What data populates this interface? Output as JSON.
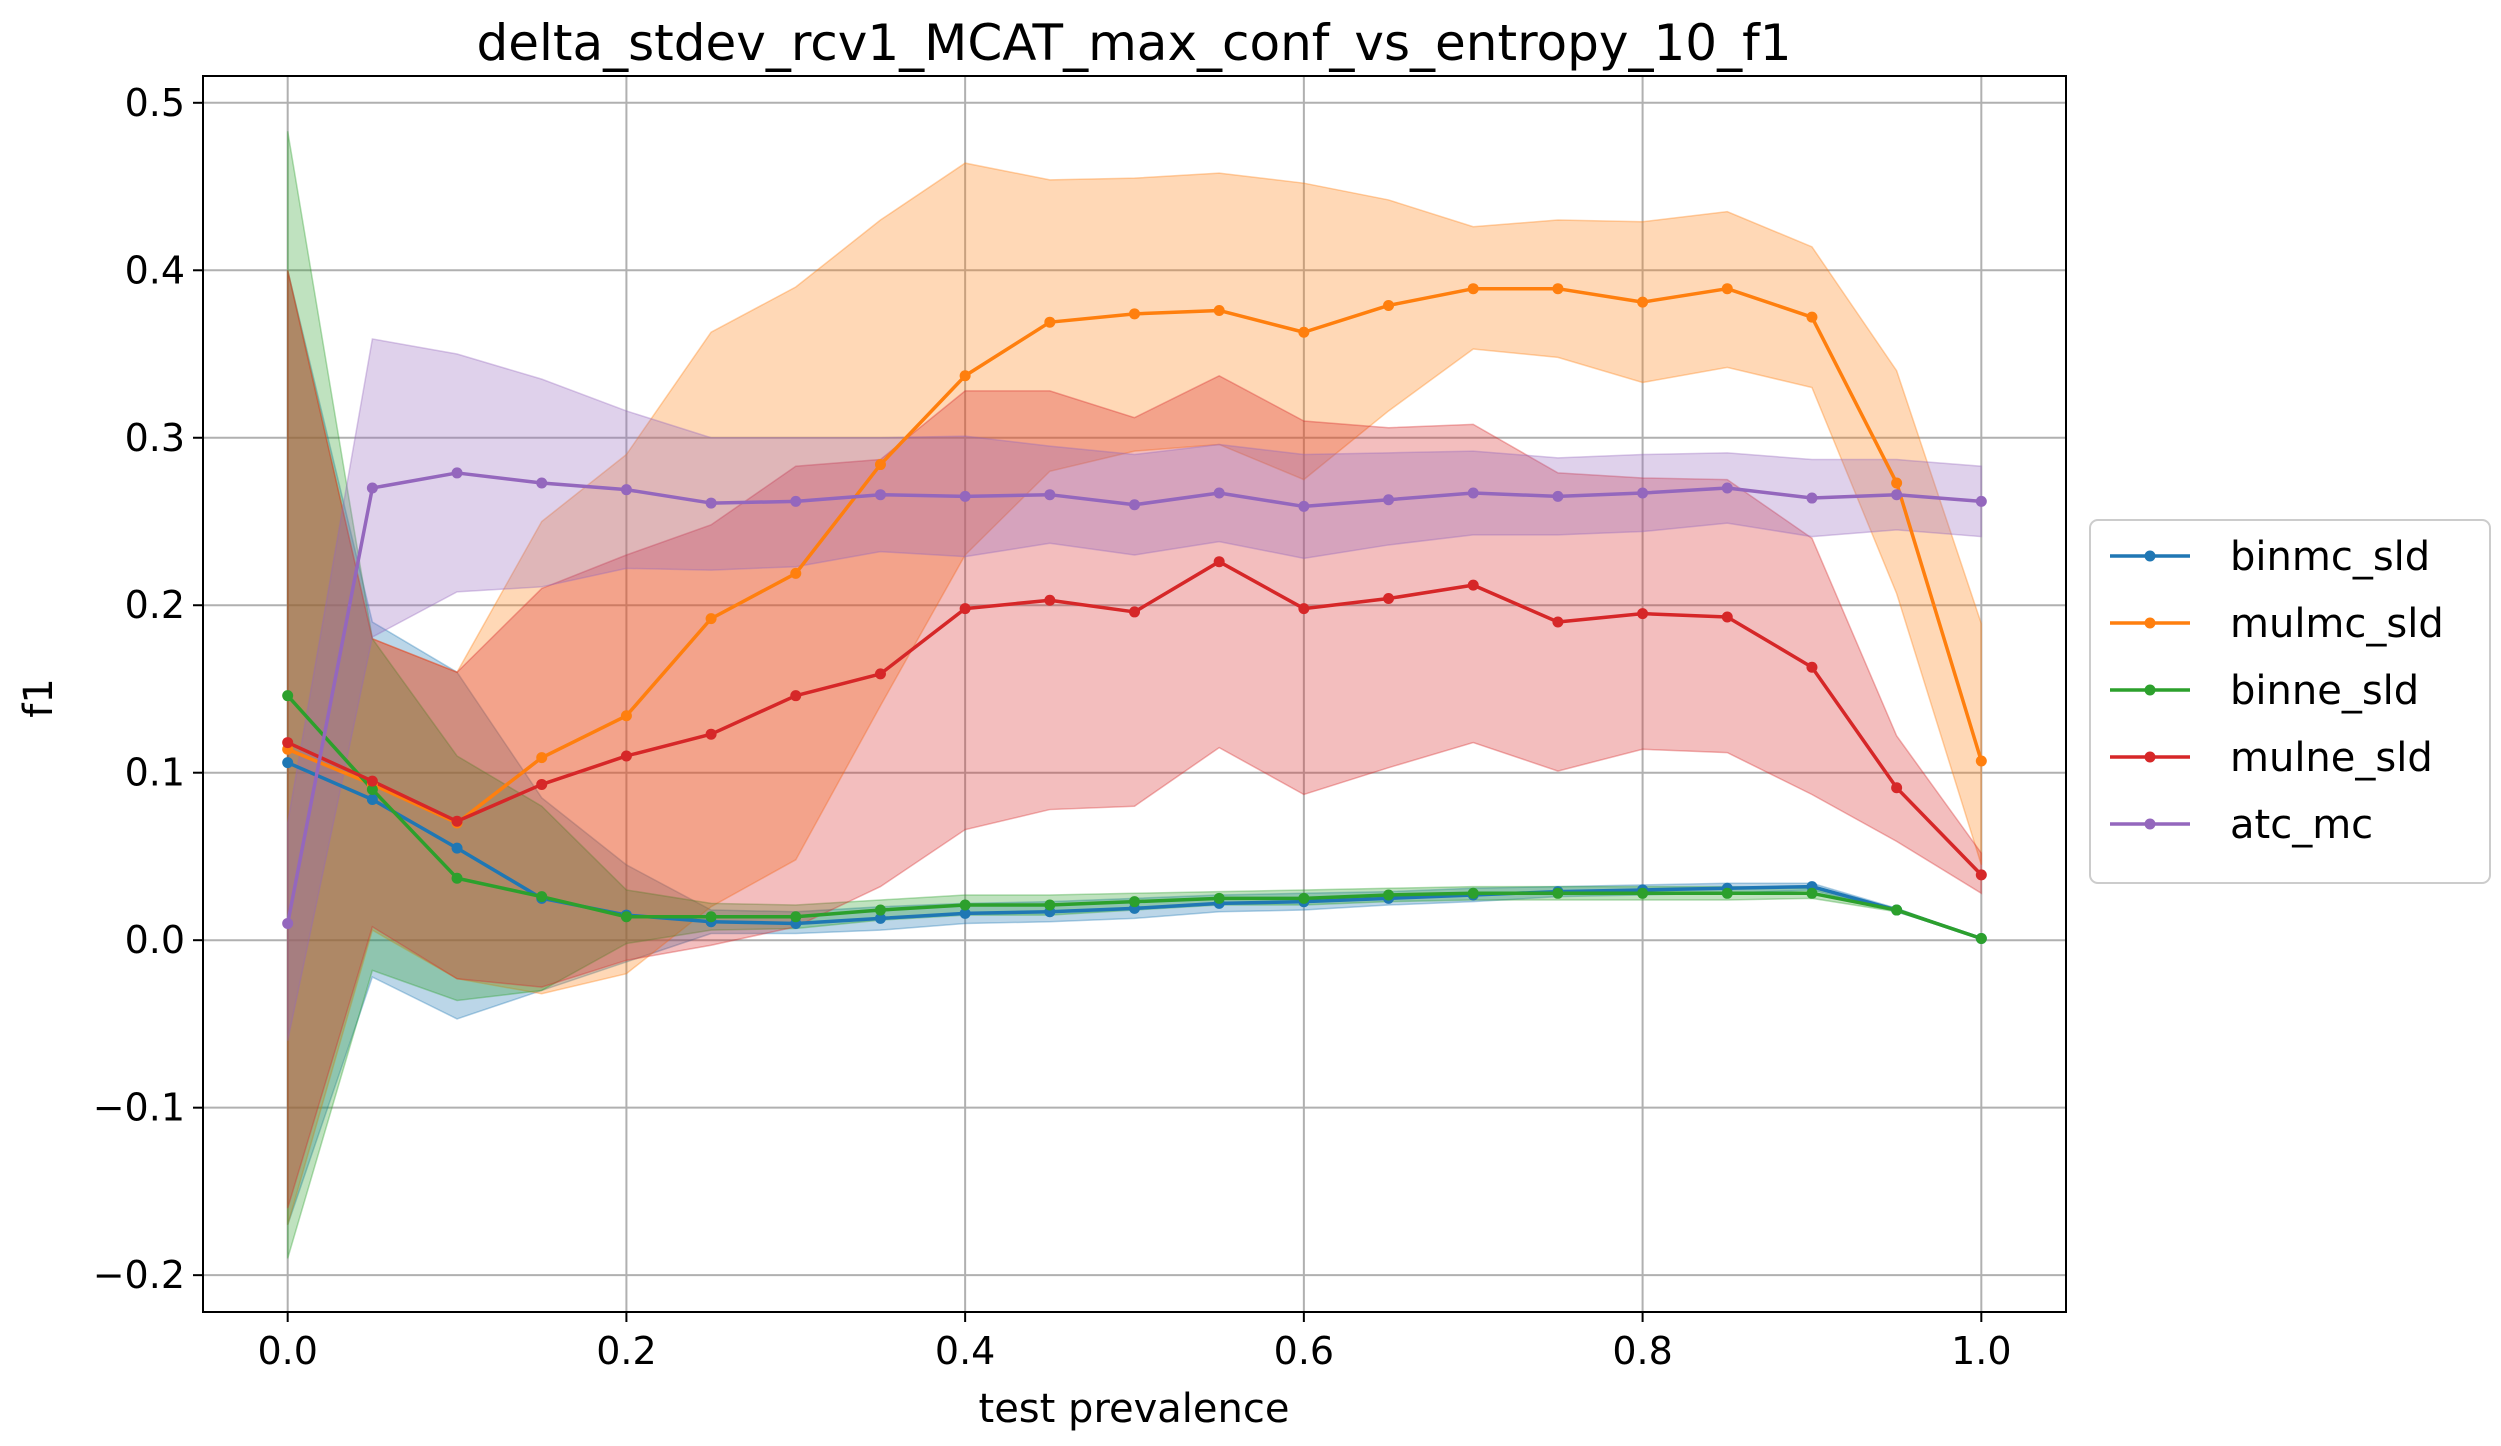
{
  "chart_data": {
    "type": "line",
    "title": "delta_stdev_rcv1_MCAT_max_conf_vs_entropy_10_f1",
    "xlabel": "test prevalence",
    "ylabel": "f1",
    "xlim": [
      -0.05,
      1.05
    ],
    "ylim": [
      -0.222,
      0.516
    ],
    "xticks": [
      0.0,
      0.2,
      0.4,
      0.6,
      0.8,
      1.0
    ],
    "xtick_labels": [
      "0.0",
      "0.2",
      "0.4",
      "0.6",
      "0.8",
      "1.0"
    ],
    "yticks": [
      -0.2,
      -0.1,
      0.0,
      0.1,
      0.2,
      0.3,
      0.4,
      0.5
    ],
    "ytick_labels": [
      "−0.2",
      "−0.1",
      "0.0",
      "0.1",
      "0.2",
      "0.3",
      "0.4",
      "0.5"
    ],
    "grid": true,
    "legend_position": "outside-right",
    "x": [
      0.0,
      0.05,
      0.1,
      0.15,
      0.2,
      0.25,
      0.3,
      0.35,
      0.4,
      0.45,
      0.5,
      0.55,
      0.6,
      0.65,
      0.7,
      0.75,
      0.8,
      0.85,
      0.9,
      0.95,
      1.0
    ],
    "series": [
      {
        "name": "binmc_sld",
        "color": "#1f77b4",
        "values": [
          0.106,
          0.084,
          0.055,
          0.025,
          0.015,
          0.011,
          0.01,
          0.013,
          0.016,
          0.017,
          0.019,
          0.022,
          0.023,
          0.025,
          0.027,
          0.029,
          0.03,
          0.031,
          0.032,
          0.018,
          0.001
        ],
        "upper": [
          0.4,
          0.19,
          0.16,
          0.085,
          0.045,
          0.018,
          0.017,
          0.02,
          0.022,
          0.023,
          0.025,
          0.027,
          0.028,
          0.029,
          0.031,
          0.032,
          0.033,
          0.034,
          0.034,
          0.019,
          0.001
        ],
        "lower": [
          -0.17,
          -0.022,
          -0.047,
          -0.03,
          -0.013,
          0.004,
          0.004,
          0.006,
          0.01,
          0.011,
          0.013,
          0.017,
          0.018,
          0.021,
          0.023,
          0.026,
          0.027,
          0.028,
          0.03,
          0.017,
          0.001
        ]
      },
      {
        "name": "mulmc_sld",
        "color": "#ff7f0e",
        "values": [
          0.114,
          0.093,
          0.07,
          0.109,
          0.134,
          0.192,
          0.219,
          0.284,
          0.337,
          0.369,
          0.374,
          0.376,
          0.363,
          0.379,
          0.389,
          0.389,
          0.381,
          0.389,
          0.372,
          0.273,
          0.107
        ],
        "upper": [
          0.4,
          0.18,
          0.16,
          0.25,
          0.29,
          0.363,
          0.39,
          0.43,
          0.464,
          0.454,
          0.455,
          0.458,
          0.452,
          0.442,
          0.426,
          0.43,
          0.429,
          0.435,
          0.414,
          0.34,
          0.189
        ],
        "lower": [
          -0.17,
          0.006,
          -0.023,
          -0.032,
          -0.02,
          0.02,
          0.048,
          0.14,
          0.23,
          0.28,
          0.292,
          0.296,
          0.275,
          0.316,
          0.353,
          0.348,
          0.333,
          0.342,
          0.33,
          0.207,
          0.045
        ]
      },
      {
        "name": "binne_sld",
        "color": "#2ca02c",
        "values": [
          0.146,
          0.09,
          0.037,
          0.026,
          0.014,
          0.014,
          0.014,
          0.018,
          0.021,
          0.021,
          0.023,
          0.025,
          0.025,
          0.027,
          0.028,
          0.028,
          0.028,
          0.028,
          0.028,
          0.018,
          0.001
        ],
        "upper": [
          0.483,
          0.18,
          0.11,
          0.08,
          0.03,
          0.022,
          0.021,
          0.024,
          0.027,
          0.027,
          0.028,
          0.029,
          0.03,
          0.031,
          0.032,
          0.032,
          0.032,
          0.032,
          0.031,
          0.019,
          0.001
        ],
        "lower": [
          -0.19,
          -0.018,
          -0.036,
          -0.03,
          -0.002,
          0.006,
          0.007,
          0.012,
          0.015,
          0.015,
          0.018,
          0.021,
          0.021,
          0.023,
          0.024,
          0.024,
          0.024,
          0.024,
          0.025,
          0.017,
          0.001
        ]
      },
      {
        "name": "mulne_sld",
        "color": "#d62728",
        "values": [
          0.118,
          0.095,
          0.071,
          0.093,
          0.11,
          0.123,
          0.146,
          0.159,
          0.198,
          0.203,
          0.196,
          0.226,
          0.198,
          0.204,
          0.212,
          0.19,
          0.195,
          0.193,
          0.163,
          0.091,
          0.039
        ],
        "upper": [
          0.4,
          0.18,
          0.16,
          0.21,
          0.23,
          0.248,
          0.283,
          0.287,
          0.328,
          0.328,
          0.312,
          0.337,
          0.31,
          0.306,
          0.308,
          0.279,
          0.276,
          0.275,
          0.24,
          0.122,
          0.052
        ],
        "lower": [
          -0.16,
          0.008,
          -0.023,
          -0.028,
          -0.012,
          -0.003,
          0.008,
          0.032,
          0.066,
          0.078,
          0.08,
          0.115,
          0.087,
          0.103,
          0.118,
          0.101,
          0.114,
          0.112,
          0.087,
          0.059,
          0.028
        ]
      },
      {
        "name": "atc_mc",
        "color": "#9467bd",
        "values": [
          0.01,
          0.27,
          0.279,
          0.273,
          0.269,
          0.261,
          0.262,
          0.266,
          0.265,
          0.266,
          0.26,
          0.267,
          0.259,
          0.263,
          0.267,
          0.265,
          0.267,
          0.27,
          0.264,
          0.266,
          0.262
        ],
        "upper": [
          0.07,
          0.359,
          0.35,
          0.335,
          0.316,
          0.3,
          0.3,
          0.3,
          0.301,
          0.295,
          0.29,
          0.296,
          0.29,
          0.291,
          0.292,
          0.288,
          0.29,
          0.291,
          0.287,
          0.287,
          0.283
        ],
        "lower": [
          -0.06,
          0.181,
          0.208,
          0.211,
          0.222,
          0.221,
          0.223,
          0.232,
          0.229,
          0.237,
          0.23,
          0.238,
          0.228,
          0.236,
          0.242,
          0.242,
          0.244,
          0.249,
          0.241,
          0.245,
          0.241
        ]
      }
    ]
  }
}
